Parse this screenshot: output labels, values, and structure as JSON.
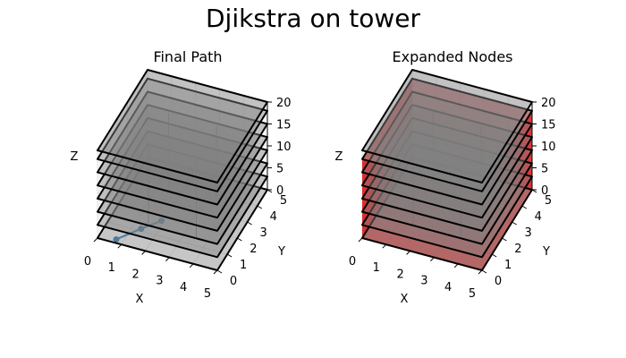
{
  "figure": {
    "suptitle": "Djikstra on tower"
  },
  "chart_data": [
    {
      "type": "3d-voxel",
      "title": "Final Path",
      "xlabel": "X",
      "ylabel": "Y",
      "zlabel": "Z",
      "xlim": [
        0,
        5
      ],
      "ylim": [
        0,
        5
      ],
      "zlim": [
        0,
        20
      ],
      "xticks": [
        "0",
        "1",
        "2",
        "3",
        "4",
        "5"
      ],
      "yticks": [
        "0",
        "1",
        "2",
        "3",
        "4",
        "5"
      ],
      "zticks": [
        "0",
        "5",
        "10",
        "15",
        "20"
      ],
      "grid": true,
      "obstacle_color": "#808080",
      "path_color": "#1f77b4",
      "floors_z": [
        0,
        3,
        6,
        9,
        12,
        15,
        18,
        20
      ],
      "path_points": [
        {
          "x": 0.7,
          "y": 0.2,
          "z": 0.0
        },
        {
          "x": 1.4,
          "y": 1.0,
          "z": 0.5
        },
        {
          "x": 2.0,
          "y": 1.6,
          "z": 1.0
        }
      ]
    },
    {
      "type": "3d-voxel",
      "title": "Expanded Nodes",
      "xlabel": "X",
      "ylabel": "Y",
      "zlabel": "Z",
      "xlim": [
        0,
        5
      ],
      "ylim": [
        0,
        5
      ],
      "zlim": [
        0,
        20
      ],
      "xticks": [
        "0",
        "1",
        "2",
        "3",
        "4",
        "5"
      ],
      "yticks": [
        "0",
        "1",
        "2",
        "3",
        "4",
        "5"
      ],
      "zticks": [
        "0",
        "5",
        "10",
        "15",
        "20"
      ],
      "grid": true,
      "obstacle_color": "#808080",
      "expanded_color": "#d62728",
      "floors_z": [
        0,
        3,
        6,
        9,
        12,
        15,
        18,
        20
      ],
      "expanded_region": {
        "x": [
          0,
          5
        ],
        "y": [
          0,
          5
        ],
        "z": [
          0,
          18
        ]
      }
    }
  ]
}
